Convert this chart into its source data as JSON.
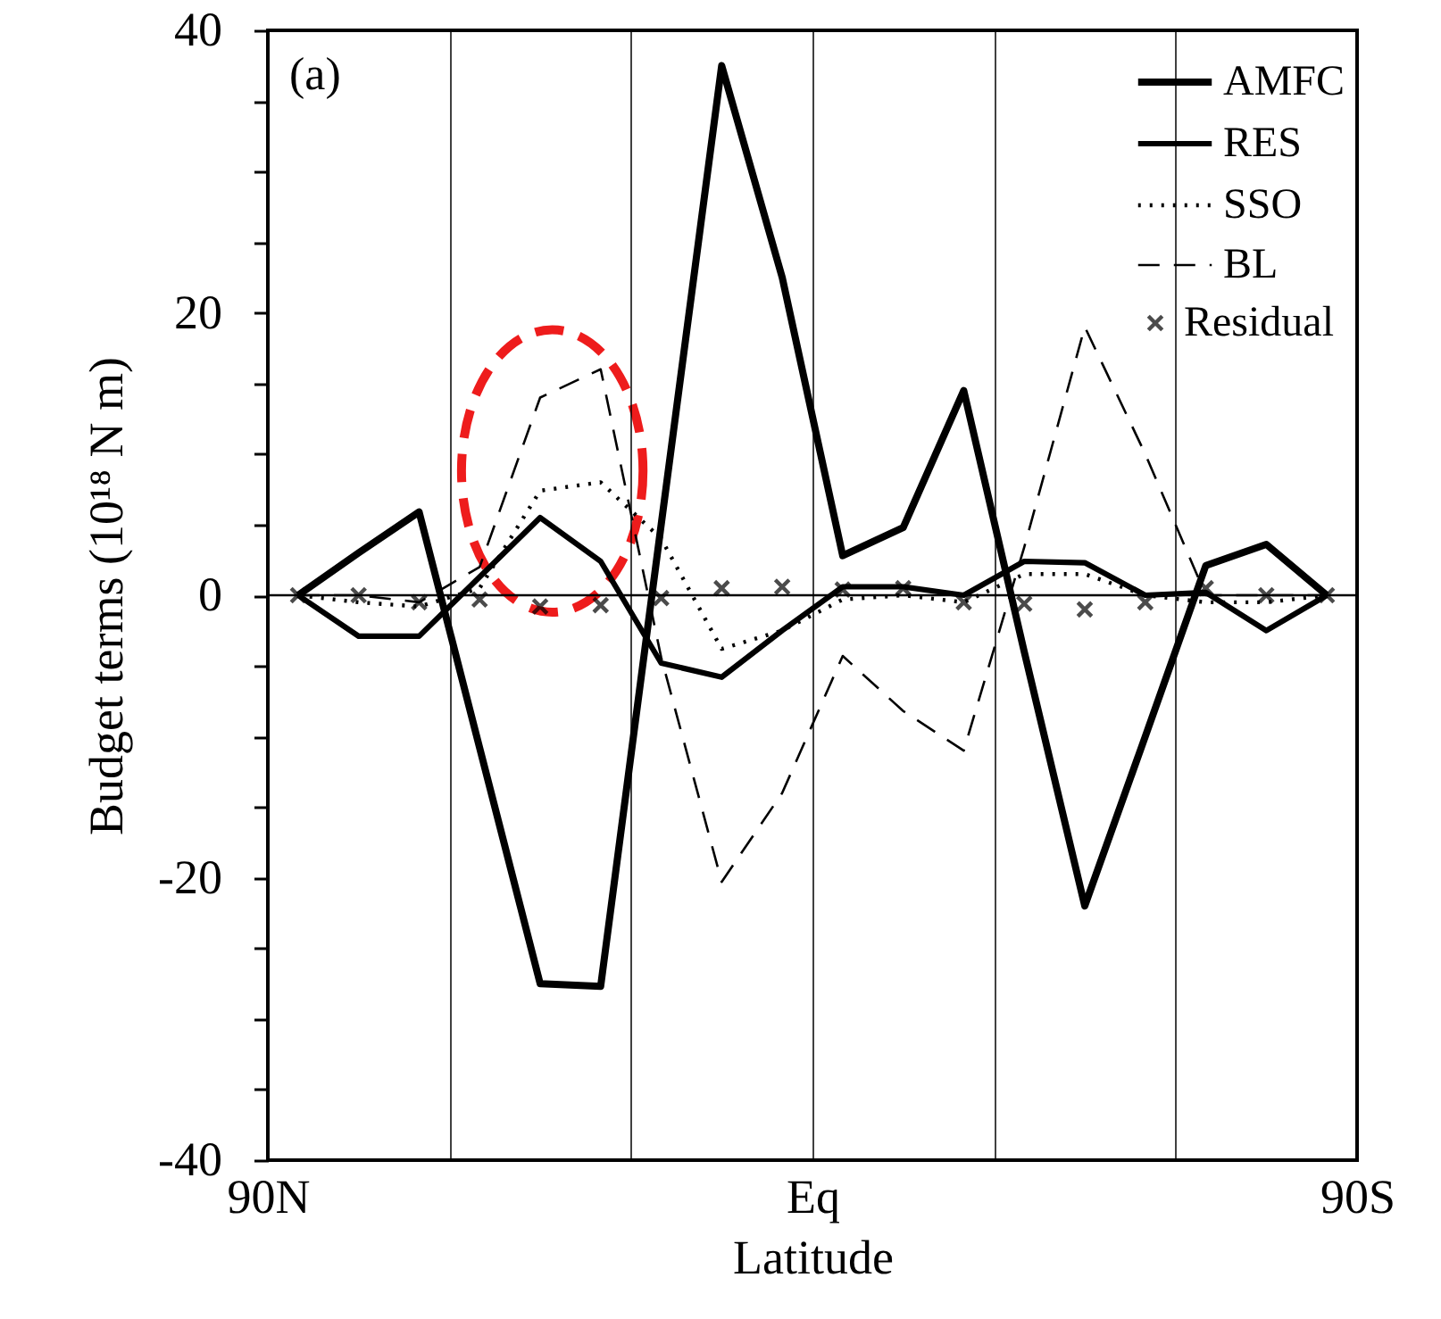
{
  "chart_data": {
    "type": "line",
    "xlabel": "Latitude",
    "ylabel": "Budget terms  (10¹⁸ N m)",
    "x": [
      85,
      75,
      65,
      55,
      45,
      35,
      25,
      15,
      5,
      -5,
      -15,
      -25,
      -35,
      -45,
      -55,
      -65,
      -75,
      -85
    ],
    "series": [
      {
        "name": "AMFC",
        "color": "#000000",
        "line_style": "solid",
        "values": [
          0,
          3,
          5.9,
          -10.8,
          -27.5,
          -27.7,
          5,
          37.5,
          22.5,
          2.8,
          4.8,
          14.5,
          -4,
          -22,
          -10,
          2.1,
          3.6,
          0
        ]
      },
      {
        "name": "RES",
        "color": "#000000",
        "line_style": "solid",
        "values": [
          0,
          -2.9,
          -2.9,
          1.3,
          5.5,
          2.4,
          -4.8,
          -5.8,
          -2.5,
          0.6,
          0.6,
          0,
          2.4,
          2.3,
          0,
          0.2,
          -2.5,
          0
        ]
      },
      {
        "name": "SSO",
        "color": "#000000",
        "line_style": "dotted",
        "values": [
          0,
          -0.5,
          -0.8,
          0.5,
          7.4,
          8,
          4,
          -3.8,
          -2.5,
          -0.3,
          0,
          -0.5,
          1.5,
          1.5,
          0,
          -0.5,
          -0.5,
          0
        ]
      },
      {
        "name": "BL",
        "color": "#000000",
        "line_style": "dashed",
        "values": [
          0,
          0,
          -0.5,
          2,
          14,
          16,
          -4.4,
          -20.3,
          -14,
          -4.3,
          -8.2,
          -11,
          3.4,
          19,
          10,
          0,
          0,
          0
        ]
      },
      {
        "name": "Residual",
        "type": "scatter",
        "marker": "cross",
        "color": "#000000",
        "values": [
          0,
          0,
          -0.5,
          -0.3,
          -0.8,
          -0.7,
          -0.2,
          0.5,
          0.6,
          0.4,
          0.5,
          -0.5,
          -0.6,
          -1,
          -0.5,
          0.5,
          0,
          0
        ]
      }
    ],
    "xlim": [
      90,
      -90
    ],
    "xticks": [
      {
        "value": 90,
        "label": "90N"
      },
      {
        "value": 60,
        "label": null
      },
      {
        "value": 30,
        "label": null
      },
      {
        "value": 0,
        "label": "Eq"
      },
      {
        "value": -30,
        "label": null
      },
      {
        "value": -60,
        "label": null
      },
      {
        "value": -90,
        "label": "90S"
      }
    ],
    "ylim": [
      -40,
      40
    ],
    "yticks": [
      -40,
      {
        "value": -35,
        "label": null
      },
      {
        "value": -30,
        "label": null
      },
      {
        "value": -25,
        "label": null
      },
      -20,
      {
        "value": -15,
        "label": null
      },
      {
        "value": -10,
        "label": null
      },
      {
        "value": -5,
        "label": null
      },
      0,
      {
        "value": 5,
        "label": null
      },
      {
        "value": 10,
        "label": null
      },
      {
        "value": 15,
        "label": null
      },
      20,
      {
        "value": 25,
        "label": null
      },
      {
        "value": 30,
        "label": null
      },
      {
        "value": 35,
        "label": null
      },
      40
    ],
    "ref_lines": [
      {
        "axis": "y",
        "value": 0,
        "color": "#000000"
      }
    ],
    "grid": "x",
    "legend": "top right",
    "annotations": [
      "(a)"
    ]
  }
}
